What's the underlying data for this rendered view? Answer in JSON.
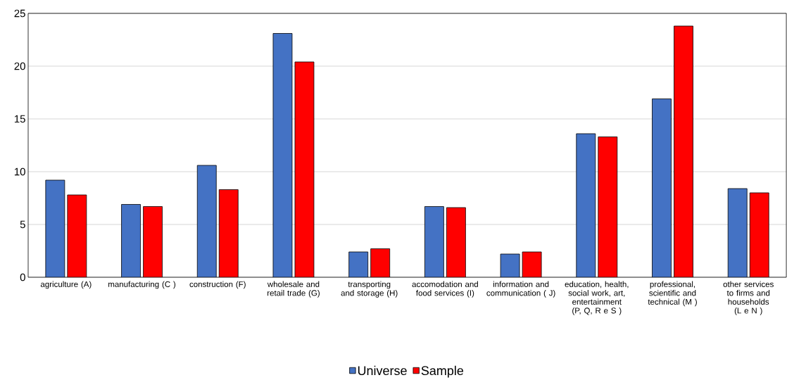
{
  "chart_data": {
    "type": "bar",
    "categories": [
      "agriculture (A)",
      "manufacturing (C )",
      "construction (F)",
      "wholesale and retail trade (G)",
      "transporting and storage (H)",
      "accomodation and food services (I)",
      "information and communication ( J)",
      "education, health, social work, art, entertainment (P, Q, R e S )",
      "professional, scientific and technical  (M  )",
      "other services to firms and households (L e N )"
    ],
    "series": [
      {
        "name": "Universe",
        "color": "#4472c4",
        "values": [
          9.2,
          6.9,
          10.6,
          23.1,
          2.4,
          6.7,
          2.2,
          13.6,
          16.9,
          8.4
        ]
      },
      {
        "name": "Sample",
        "color": "#ff0000",
        "values": [
          7.8,
          6.7,
          8.3,
          20.4,
          2.7,
          6.6,
          2.4,
          13.3,
          23.8,
          8.0
        ]
      }
    ],
    "ylim": [
      0,
      25
    ],
    "yticks": [
      0,
      5,
      10,
      15,
      20,
      25
    ],
    "grid": "y",
    "legend": "bottom"
  }
}
